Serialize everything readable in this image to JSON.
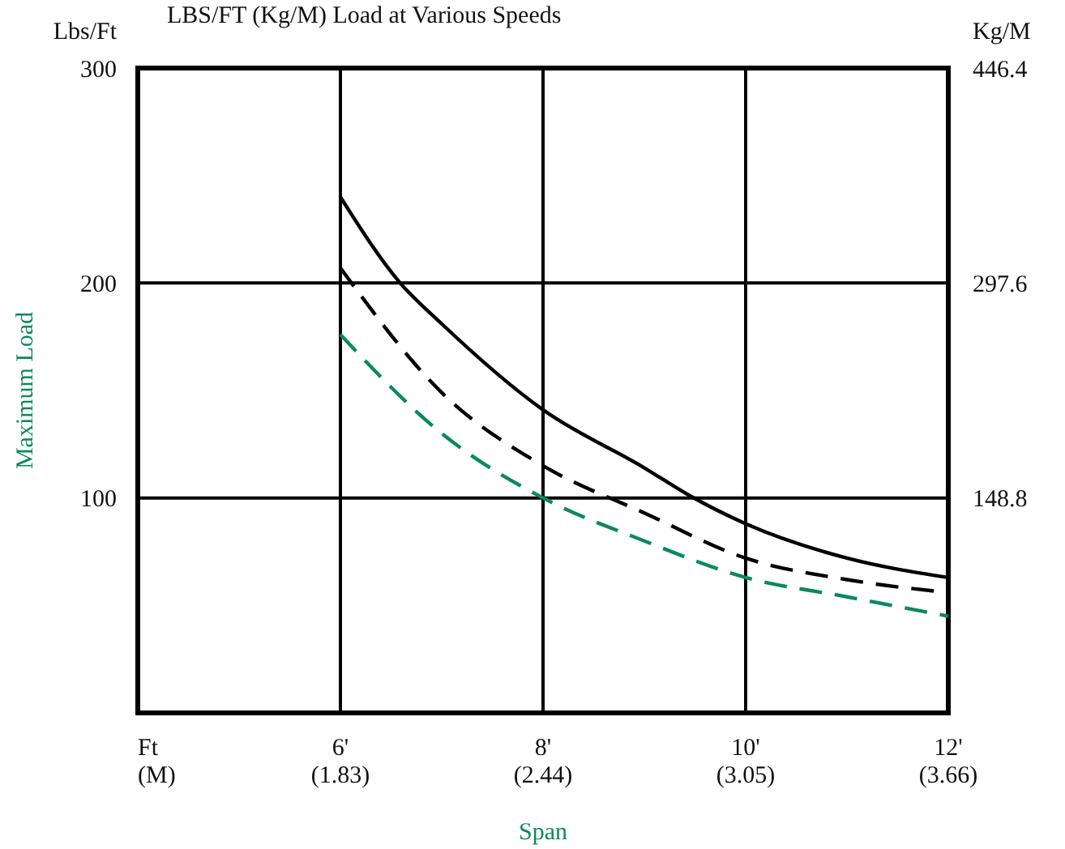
{
  "chart_data": {
    "type": "line",
    "title": "LBS/FT (Kg/M) Load at Various Speeds",
    "xlabel": "Span",
    "ylabel": "Maximum Load",
    "y2label": "Kg/M",
    "annotations": [
      "Lbs/Ft"
    ],
    "xlim": [
      4,
      12
    ],
    "xticks": [
      {
        "value": 4,
        "label": "Ft"
      },
      {
        "value": 6,
        "label": "6'"
      },
      {
        "value": 8,
        "label": "8'"
      },
      {
        "value": 10,
        "label": "10'"
      },
      {
        "value": 12,
        "label": "12'"
      }
    ],
    "x2lim": [
      1.22,
      3.66
    ],
    "x2ticks": [
      {
        "value": 1.22,
        "label": "(M)"
      },
      {
        "value": 1.83,
        "label": "(1.83)"
      },
      {
        "value": 2.44,
        "label": "(2.44)"
      },
      {
        "value": 3.05,
        "label": "(3.05)"
      },
      {
        "value": 3.66,
        "label": "(3.66)"
      }
    ],
    "ylim": [
      0,
      300
    ],
    "yticks": [
      100,
      200,
      300
    ],
    "y2lim": [
      0,
      446.4
    ],
    "y2ticks": [
      148.8,
      297.6,
      446.4
    ],
    "grid": true,
    "series": [
      {
        "color": "#000000",
        "line_style": "solid",
        "x": [
          6,
          6.59,
          7,
          8,
          9,
          9.45,
          10,
          11,
          12
        ],
        "values": [
          240,
          200,
          181,
          141,
          114,
          101,
          88,
          72,
          63
        ]
      },
      {
        "color": "#000000",
        "line_style": "dashed",
        "x": [
          6,
          7,
          8,
          9,
          10,
          11,
          12
        ],
        "values": [
          207,
          149,
          115,
          93,
          72,
          62,
          56
        ]
      },
      {
        "color": "#0a8a5a",
        "line_style": "dashed",
        "x": [
          6,
          7,
          8,
          9,
          10,
          11,
          12
        ],
        "values": [
          176,
          130,
          100,
          80,
          63,
          54,
          45
        ]
      }
    ]
  }
}
